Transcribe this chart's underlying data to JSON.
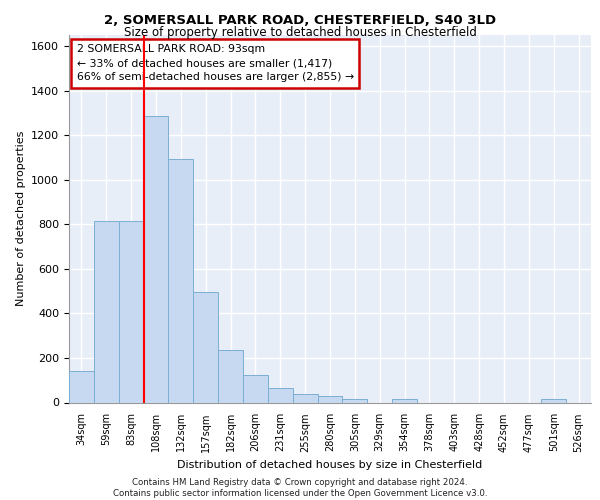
{
  "title1": "2, SOMERSALL PARK ROAD, CHESTERFIELD, S40 3LD",
  "title2": "Size of property relative to detached houses in Chesterfield",
  "xlabel": "Distribution of detached houses by size in Chesterfield",
  "ylabel": "Number of detached properties",
  "footer": "Contains HM Land Registry data © Crown copyright and database right 2024.\nContains public sector information licensed under the Open Government Licence v3.0.",
  "property_label": "2 SOMERSALL PARK ROAD: 93sqm",
  "annotation_line1": "← 33% of detached houses are smaller (1,417)",
  "annotation_line2": "66% of semi-detached houses are larger (2,855) →",
  "bar_labels": [
    "34sqm",
    "59sqm",
    "83sqm",
    "108sqm",
    "132sqm",
    "157sqm",
    "182sqm",
    "206sqm",
    "231sqm",
    "255sqm",
    "280sqm",
    "305sqm",
    "329sqm",
    "354sqm",
    "378sqm",
    "403sqm",
    "428sqm",
    "452sqm",
    "477sqm",
    "501sqm",
    "526sqm"
  ],
  "bar_values": [
    140,
    815,
    815,
    1285,
    1095,
    495,
    235,
    125,
    65,
    38,
    27,
    14,
    0,
    14,
    0,
    0,
    0,
    0,
    0,
    14,
    0
  ],
  "bar_color": "#c6d9f0",
  "bar_edge_color": "#7bafd4",
  "bar_width": 1.0,
  "vline_color": "#ff0000",
  "vline_x_index": 2.5,
  "ylim": [
    0,
    1650
  ],
  "yticks": [
    0,
    200,
    400,
    600,
    800,
    1000,
    1200,
    1400,
    1600
  ],
  "annotation_box_color": "#cc0000",
  "background_color": "#e8eef8",
  "grid_color": "#ffffff"
}
